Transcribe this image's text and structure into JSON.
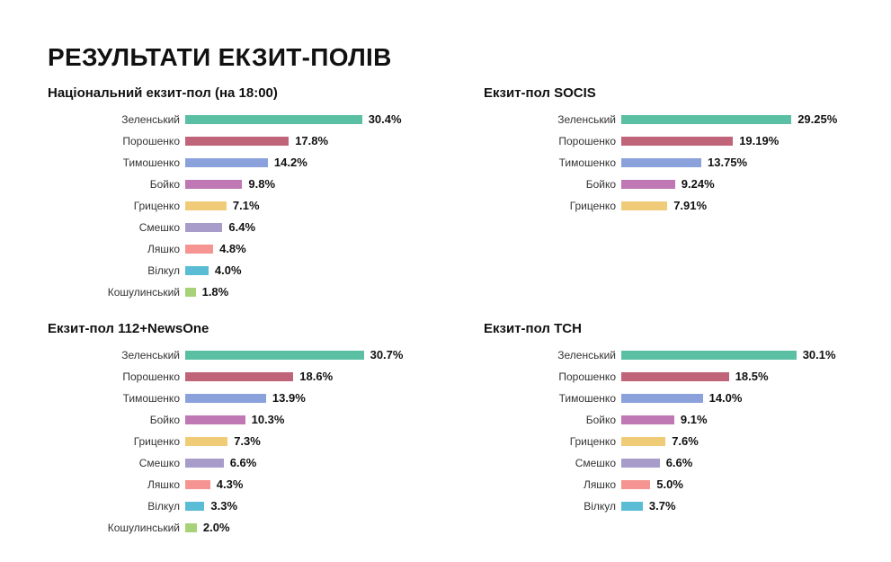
{
  "title": "РЕЗУЛЬТАТИ ЕКЗИТ-ПОЛІВ",
  "colors": {
    "Зеленський": "#5bbfa3",
    "Порошенко": "#c0647a",
    "Тимошенко": "#8aa1dc",
    "Бойко": "#bf78b3",
    "Гриценко": "#f0cb78",
    "Смешко": "#a89ccb",
    "Ляшко": "#f59490",
    "Вілкул": "#5bbcd6",
    "Кошулинський": "#a8d279"
  },
  "chart_data": [
    {
      "type": "bar",
      "orientation": "horizontal",
      "title": "Національний екзит-пол (на 18:00)",
      "categories": [
        "Зеленський",
        "Порошенко",
        "Тимошенко",
        "Бойко",
        "Гриценко",
        "Смешко",
        "Ляшко",
        "Вілкул",
        "Кошулинський"
      ],
      "values": [
        30.4,
        17.8,
        14.2,
        9.8,
        7.1,
        6.4,
        4.8,
        4.0,
        1.8
      ],
      "value_labels": [
        "30.4%",
        "17.8%",
        "14.2%",
        "9.8%",
        "7.1%",
        "6.4%",
        "4.8%",
        "4.0%",
        "1.8%"
      ]
    },
    {
      "type": "bar",
      "orientation": "horizontal",
      "title": "Екзит-пол SOCIS",
      "categories": [
        "Зеленський",
        "Порошенко",
        "Тимошенко",
        "Бойко",
        "Гриценко"
      ],
      "values": [
        29.25,
        19.19,
        13.75,
        9.24,
        7.91
      ],
      "value_labels": [
        "29.25%",
        "19.19%",
        "13.75%",
        "9.24%",
        "7.91%"
      ]
    },
    {
      "type": "bar",
      "orientation": "horizontal",
      "title": "Екзит-пол 112+NewsOne",
      "categories": [
        "Зеленський",
        "Порошенко",
        "Тимошенко",
        "Бойко",
        "Гриценко",
        "Смешко",
        "Ляшко",
        "Вілкул",
        "Кошулинський"
      ],
      "values": [
        30.7,
        18.6,
        13.9,
        10.3,
        7.3,
        6.6,
        4.3,
        3.3,
        2.0
      ],
      "value_labels": [
        "30.7%",
        "18.6%",
        "13.9%",
        "10.3%",
        "7.3%",
        "6.6%",
        "4.3%",
        "3.3%",
        "2.0%"
      ]
    },
    {
      "type": "bar",
      "orientation": "horizontal",
      "title": "Екзит-пол ТСН",
      "categories": [
        "Зеленський",
        "Порошенко",
        "Тимошенко",
        "Бойко",
        "Гриценко",
        "Смешко",
        "Ляшко",
        "Вілкул"
      ],
      "values": [
        30.1,
        18.5,
        14.0,
        9.1,
        7.6,
        6.6,
        5.0,
        3.7
      ],
      "value_labels": [
        "30.1%",
        "18.5%",
        "14.0%",
        "9.1%",
        "7.6%",
        "6.6%",
        "5.0%",
        "3.7%"
      ]
    }
  ]
}
